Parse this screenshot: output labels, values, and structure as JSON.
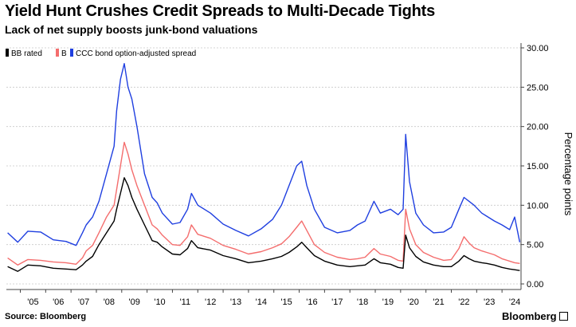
{
  "header": {
    "title": "Yield Hunt Crushes Credit Spreads to Multi-Decade Tights",
    "subtitle": "Lack of net supply boosts junk-bond valuations"
  },
  "footer": {
    "source": "Source: Bloomberg",
    "brand": "Bloomberg"
  },
  "colors": {
    "BB": "#000000",
    "B": "#f46d6d",
    "CCC": "#1f3fe0",
    "grid": "#c8c8c8",
    "axis": "#444444"
  },
  "chart_data": {
    "type": "line",
    "title": "Yield Hunt Crushes Credit Spreads to Multi-Decade Tights",
    "subtitle": "Lack of net supply boosts junk-bond valuations",
    "ylabel": "Percentage points",
    "ylim": [
      0,
      30
    ],
    "yticks": [
      "0.00",
      "5.00",
      "10.00",
      "15.00",
      "20.00",
      "25.00",
      "30.00"
    ],
    "xlim": [
      2004.45,
      2024.75
    ],
    "xticks": [
      "'05",
      "'06",
      "'07",
      "'08",
      "'09",
      "'10",
      "'11",
      "'12",
      "'13",
      "'14",
      "'15",
      "'16",
      "'17",
      "'18",
      "'19",
      "'20",
      "'21",
      "'22",
      "'23",
      "'24"
    ],
    "y_axis_position": "right",
    "grid": "horizontal",
    "legend_position": "top-left",
    "x": [
      2004.5,
      2004.9,
      2005.3,
      2005.8,
      2006.3,
      2006.8,
      2007.2,
      2007.45,
      2007.6,
      2007.85,
      2008.1,
      2008.4,
      2008.7,
      2008.8,
      2008.95,
      2009.1,
      2009.25,
      2009.4,
      2009.6,
      2009.9,
      2010.2,
      2010.4,
      2010.6,
      2011.0,
      2011.3,
      2011.6,
      2011.75,
      2012.0,
      2012.5,
      2013.0,
      2013.5,
      2014.0,
      2014.5,
      2014.95,
      2015.3,
      2015.6,
      2015.9,
      2016.1,
      2016.3,
      2016.6,
      2017.0,
      2017.5,
      2018.0,
      2018.3,
      2018.6,
      2018.95,
      2019.2,
      2019.6,
      2019.9,
      2020.1,
      2020.2,
      2020.35,
      2020.6,
      2020.9,
      2021.3,
      2021.7,
      2022.0,
      2022.3,
      2022.5,
      2022.7,
      2022.9,
      2023.2,
      2023.4,
      2023.7,
      2024.0,
      2024.3,
      2024.5,
      2024.7
    ],
    "series": [
      {
        "name": "BB rated",
        "values": [
          2.2,
          1.6,
          2.4,
          2.3,
          2.0,
          1.9,
          1.8,
          2.4,
          2.9,
          3.5,
          5.0,
          6.5,
          8.0,
          9.5,
          11.5,
          13.5,
          12.5,
          11.0,
          9.5,
          7.5,
          5.5,
          5.3,
          4.7,
          3.8,
          3.7,
          4.5,
          5.5,
          4.6,
          4.3,
          3.6,
          3.2,
          2.7,
          2.9,
          3.2,
          3.5,
          4.0,
          4.7,
          5.3,
          4.6,
          3.6,
          2.9,
          2.4,
          2.2,
          2.3,
          2.4,
          3.2,
          2.7,
          2.5,
          2.1,
          2.0,
          6.2,
          4.6,
          3.5,
          2.8,
          2.4,
          2.2,
          2.2,
          2.9,
          3.6,
          3.2,
          2.9,
          2.7,
          2.6,
          2.4,
          2.1,
          1.9,
          1.8,
          1.7
        ]
      },
      {
        "name": "B",
        "values": [
          3.3,
          2.4,
          3.1,
          3.0,
          2.8,
          2.7,
          2.5,
          3.3,
          4.2,
          4.9,
          6.5,
          8.5,
          10.0,
          12.0,
          15.0,
          18.0,
          16.5,
          14.5,
          12.5,
          10.0,
          7.5,
          7.0,
          6.2,
          5.0,
          4.9,
          6.0,
          7.5,
          6.3,
          5.8,
          4.9,
          4.4,
          3.8,
          4.1,
          4.6,
          5.1,
          6.0,
          7.2,
          8.0,
          6.8,
          5.0,
          4.0,
          3.4,
          3.1,
          3.2,
          3.4,
          4.5,
          3.8,
          3.5,
          3.0,
          2.9,
          9.5,
          7.0,
          5.0,
          4.0,
          3.4,
          3.0,
          3.1,
          4.5,
          6.0,
          5.2,
          4.6,
          4.2,
          4.0,
          3.7,
          3.2,
          2.9,
          2.7,
          2.6
        ]
      },
      {
        "name": "CCC bond option-adjusted spread",
        "values": [
          6.5,
          5.3,
          6.7,
          6.6,
          5.6,
          5.4,
          4.9,
          6.5,
          7.5,
          8.5,
          10.5,
          14.0,
          17.5,
          22.0,
          26.0,
          28.0,
          25.0,
          23.5,
          20.0,
          14.0,
          11.0,
          10.3,
          9.0,
          7.6,
          7.8,
          9.5,
          11.5,
          10.0,
          9.0,
          7.6,
          6.8,
          6.1,
          7.0,
          8.2,
          10.0,
          12.5,
          15.0,
          15.6,
          12.5,
          9.5,
          7.2,
          6.5,
          6.8,
          7.5,
          8.0,
          10.5,
          9.0,
          9.5,
          8.8,
          9.5,
          19.0,
          13.0,
          9.0,
          7.5,
          6.5,
          6.6,
          7.2,
          9.5,
          11.0,
          10.5,
          10.0,
          9.0,
          8.6,
          8.0,
          7.5,
          6.9,
          8.5,
          5.3
        ]
      }
    ]
  }
}
